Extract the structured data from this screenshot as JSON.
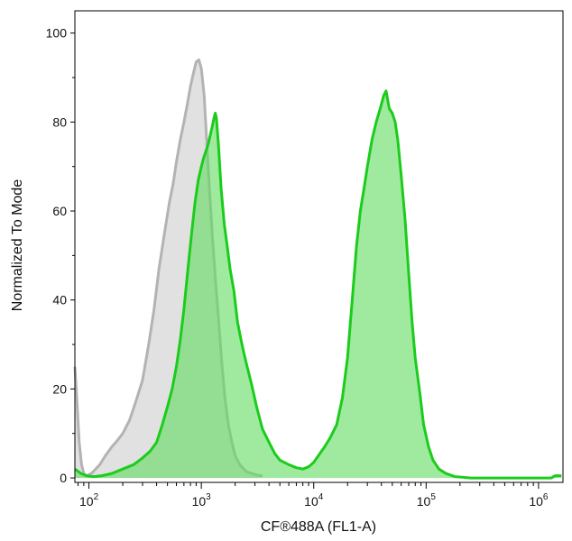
{
  "chart_data": {
    "type": "area",
    "xlabel": "CF®488A (FL1-A)",
    "ylabel": "Normalized To Mode",
    "x_scale": "log",
    "xlim": [
      75,
      1650000
    ],
    "ylim": [
      -1,
      105
    ],
    "grid": false,
    "legend": "none",
    "y_ticks": [
      0,
      20,
      40,
      60,
      80,
      100
    ],
    "x_ticks": [
      {
        "value": 100,
        "base": "10",
        "exp": "2"
      },
      {
        "value": 1000,
        "base": "10",
        "exp": "3"
      },
      {
        "value": 10000,
        "base": "10",
        "exp": "4"
      },
      {
        "value": 100000,
        "base": "10",
        "exp": "5"
      },
      {
        "value": 1000000,
        "base": "10",
        "exp": "6"
      }
    ],
    "series": [
      {
        "fill": "#e1e1e1",
        "stroke": "#b3b3b3",
        "points": [
          [
            75,
            25
          ],
          [
            78,
            18
          ],
          [
            82,
            8
          ],
          [
            86,
            3
          ],
          [
            90,
            1
          ],
          [
            95,
            0.5
          ],
          [
            105,
            1
          ],
          [
            115,
            2
          ],
          [
            125,
            3
          ],
          [
            140,
            5
          ],
          [
            160,
            7
          ],
          [
            180,
            8.5
          ],
          [
            200,
            10
          ],
          [
            230,
            13
          ],
          [
            260,
            17
          ],
          [
            300,
            22
          ],
          [
            340,
            30
          ],
          [
            380,
            38
          ],
          [
            420,
            47
          ],
          [
            470,
            55
          ],
          [
            520,
            62
          ],
          [
            560,
            66
          ],
          [
            600,
            71
          ],
          [
            650,
            76
          ],
          [
            700,
            80
          ],
          [
            750,
            84
          ],
          [
            800,
            88
          ],
          [
            850,
            91
          ],
          [
            900,
            93.5
          ],
          [
            950,
            94
          ],
          [
            1000,
            92
          ],
          [
            1060,
            86
          ],
          [
            1120,
            75
          ],
          [
            1180,
            65
          ],
          [
            1250,
            55
          ],
          [
            1330,
            45
          ],
          [
            1420,
            36
          ],
          [
            1520,
            26
          ],
          [
            1620,
            18
          ],
          [
            1740,
            12
          ],
          [
            1870,
            8
          ],
          [
            2000,
            5
          ],
          [
            2200,
            3
          ],
          [
            2500,
            1.5
          ],
          [
            2800,
            1
          ],
          [
            3200,
            0.6
          ],
          [
            3500,
            0.5
          ]
        ]
      },
      {
        "fill": "#5fdc5f",
        "fill_opacity": 0.6,
        "stroke": "#1ccc1c",
        "points": [
          [
            75,
            2
          ],
          [
            85,
            1
          ],
          [
            95,
            0.5
          ],
          [
            110,
            0.3
          ],
          [
            130,
            0.5
          ],
          [
            160,
            1
          ],
          [
            200,
            2
          ],
          [
            250,
            3
          ],
          [
            300,
            4.5
          ],
          [
            350,
            6
          ],
          [
            400,
            8
          ],
          [
            450,
            12
          ],
          [
            500,
            16
          ],
          [
            550,
            20
          ],
          [
            600,
            25
          ],
          [
            650,
            31
          ],
          [
            700,
            38
          ],
          [
            760,
            47
          ],
          [
            820,
            55
          ],
          [
            880,
            62
          ],
          [
            940,
            67
          ],
          [
            1000,
            70
          ],
          [
            1050,
            72
          ],
          [
            1100,
            73.5
          ],
          [
            1150,
            75
          ],
          [
            1200,
            77
          ],
          [
            1250,
            79
          ],
          [
            1300,
            81
          ],
          [
            1330,
            82
          ],
          [
            1360,
            81
          ],
          [
            1420,
            75
          ],
          [
            1500,
            65
          ],
          [
            1600,
            57
          ],
          [
            1700,
            52
          ],
          [
            1800,
            47
          ],
          [
            1950,
            42
          ],
          [
            2100,
            35
          ],
          [
            2300,
            30
          ],
          [
            2500,
            26
          ],
          [
            2800,
            21
          ],
          [
            3100,
            16
          ],
          [
            3500,
            11
          ],
          [
            4000,
            8
          ],
          [
            4500,
            5.5
          ],
          [
            5000,
            4
          ],
          [
            6000,
            3
          ],
          [
            7000,
            2.3
          ],
          [
            8000,
            2
          ],
          [
            9000,
            2.5
          ],
          [
            10000,
            3.5
          ],
          [
            11000,
            5
          ],
          [
            12500,
            7
          ],
          [
            14000,
            9
          ],
          [
            16000,
            12
          ],
          [
            18000,
            18
          ],
          [
            20000,
            27
          ],
          [
            22000,
            40
          ],
          [
            24000,
            52
          ],
          [
            26000,
            60
          ],
          [
            28000,
            65
          ],
          [
            30000,
            70
          ],
          [
            33000,
            76
          ],
          [
            36000,
            80
          ],
          [
            39000,
            83
          ],
          [
            42000,
            86
          ],
          [
            44000,
            87
          ],
          [
            47000,
            83
          ],
          [
            50000,
            82
          ],
          [
            53000,
            80
          ],
          [
            56000,
            76
          ],
          [
            60000,
            68
          ],
          [
            65000,
            58
          ],
          [
            70000,
            46
          ],
          [
            75000,
            35
          ],
          [
            80000,
            27
          ],
          [
            88000,
            19
          ],
          [
            95000,
            12
          ],
          [
            105000,
            7
          ],
          [
            115000,
            4
          ],
          [
            130000,
            2
          ],
          [
            150000,
            1
          ],
          [
            180000,
            0.3
          ],
          [
            250000,
            0
          ],
          [
            500000,
            0
          ],
          [
            1000000,
            0
          ],
          [
            1300000,
            0
          ],
          [
            1400000,
            0.5
          ],
          [
            1600000,
            0.5
          ]
        ]
      }
    ]
  }
}
